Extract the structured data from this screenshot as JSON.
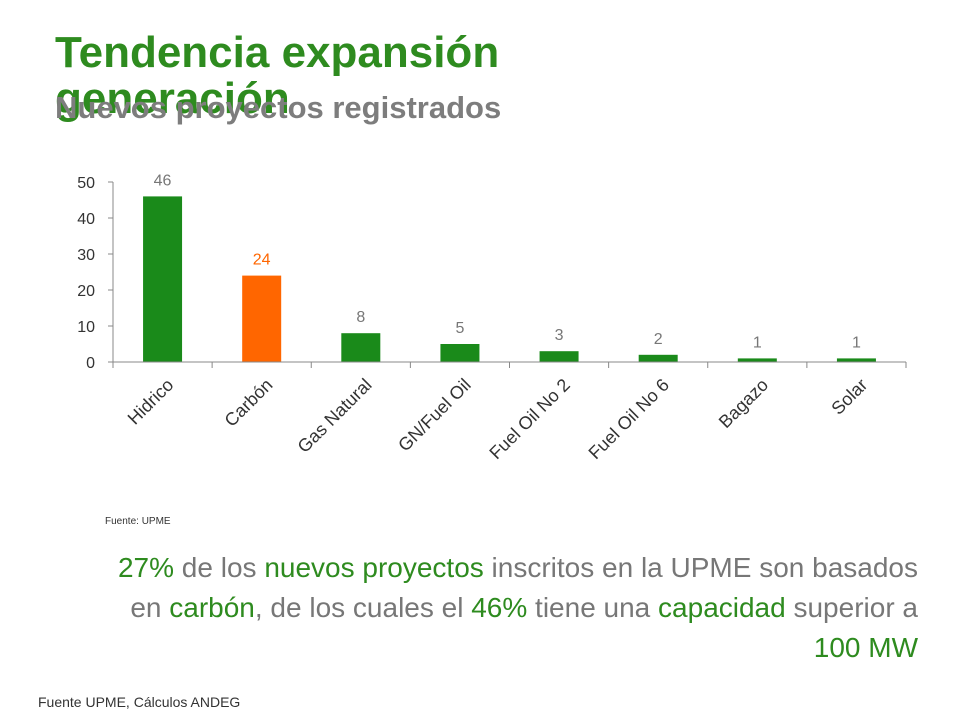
{
  "header": {
    "title": "Tendencia expansión generación",
    "subtitle": "Nuevos proyectos registrados"
  },
  "chart_data": {
    "type": "bar",
    "categories": [
      "Hidrico",
      "Carbón",
      "Gas Natural",
      "GN/Fuel Oil",
      "Fuel Oil No 2",
      "Fuel Oil No 6",
      "Bagazo",
      "Solar"
    ],
    "values": [
      46,
      24,
      8,
      5,
      3,
      2,
      1,
      1
    ],
    "data_labels": [
      "46",
      "24",
      "8",
      "5",
      "3",
      "2",
      "1",
      "1"
    ],
    "yticks": [
      0,
      10,
      20,
      30,
      40,
      50
    ],
    "ylim": [
      0,
      50
    ],
    "grid": false,
    "colors": {
      "bar": "#1a8a1a",
      "highlight_bar": "#ff6600",
      "label": "#777777",
      "highlight_label": "#ff6600"
    },
    "highlight_index": 1
  },
  "chart_source": "Fuente: UPME",
  "summary": {
    "p1": "27%",
    "p2": " de los ",
    "p3": "nuevos proyectos",
    "p4": " inscritos en la UPME son basados en ",
    "p5": "carbón",
    "p6": ", de los cuales el ",
    "p7": "46%",
    "p8": " tiene una ",
    "p9": "capacidad",
    "p10": " superior a ",
    "p11": "100 MW"
  },
  "footer": {
    "source": "Fuente UPME, Cálculos ANDEG"
  }
}
